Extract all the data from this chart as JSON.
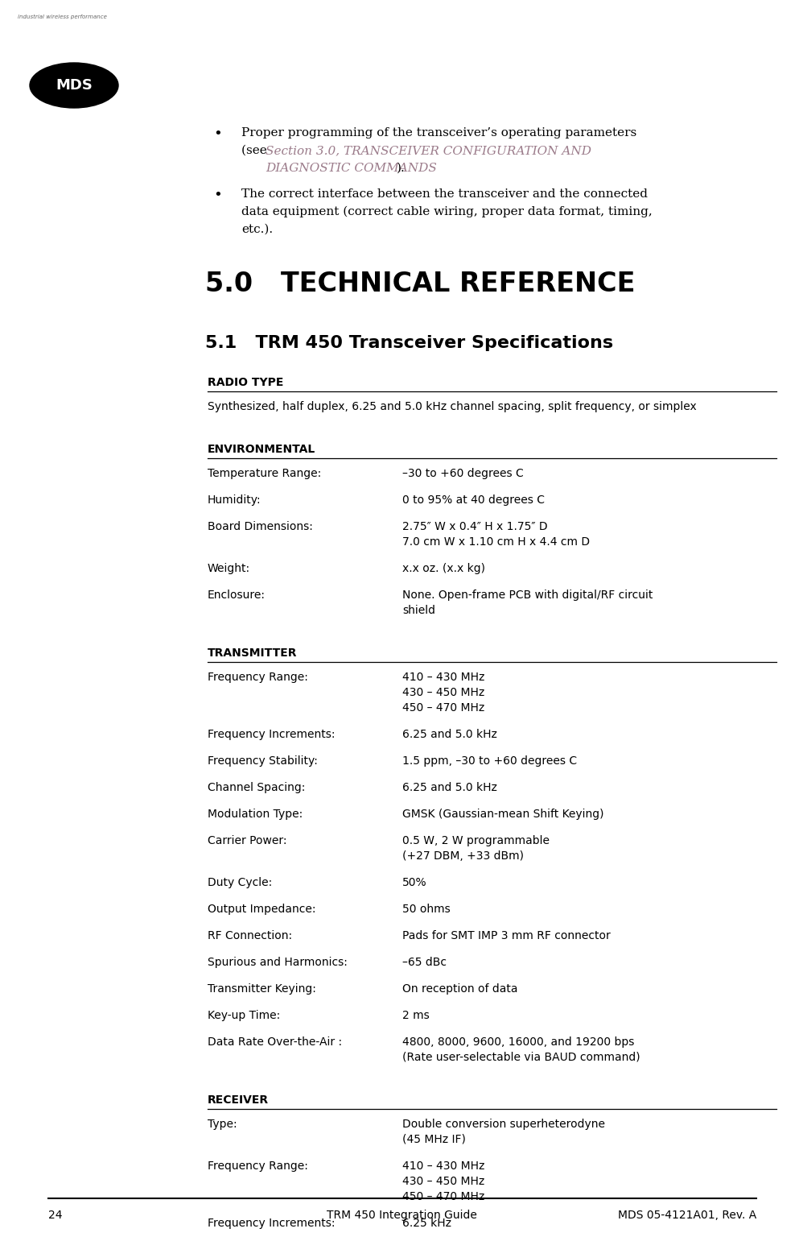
{
  "bg_color": "#ffffff",
  "text_color": "#000000",
  "link_color": "#9b7b8a",
  "page_number": "24",
  "page_title_center": "TRM 450 Integration Guide",
  "page_title_right": "MDS 05-4121A01, Rev. A",
  "sections": [
    {
      "header": "RADIO TYPE",
      "rows": [
        {
          "label": "",
          "value": "Synthesized, half duplex, 6.25 and 5.0 kHz channel spacing, split frequency, or simplex"
        }
      ]
    },
    {
      "header": "ENVIRONMENTAL",
      "rows": [
        {
          "label": "Temperature Range:",
          "value": "–30 to +60 degrees C"
        },
        {
          "label": "Humidity:",
          "value": "0 to 95% at 40 degrees C"
        },
        {
          "label": "Board Dimensions:",
          "value": "2.75″ W x 0.4″ H x 1.75″ D\n7.0 cm W x 1.10 cm H x 4.4 cm D"
        },
        {
          "label": "Weight:",
          "value": "x.x oz. (x.x kg)"
        },
        {
          "label": "Enclosure:",
          "value": "None. Open-frame PCB with digital/RF circuit\nshield"
        }
      ]
    },
    {
      "header": "TRANSMITTER",
      "rows": [
        {
          "label": "Frequency Range:",
          "value": "410 – 430 MHz\n430 – 450 MHz\n450 – 470 MHz"
        },
        {
          "label": "Frequency Increments:",
          "value": "6.25 and 5.0 kHz"
        },
        {
          "label": "Frequency Stability:",
          "value": "1.5 ppm, –30 to +60 degrees C"
        },
        {
          "label": "Channel Spacing:",
          "value": "6.25 and 5.0 kHz"
        },
        {
          "label": "Modulation Type:",
          "value": "GMSK (Gaussian-mean Shift Keying)"
        },
        {
          "label": "Carrier Power:",
          "value": "0.5 W, 2 W programmable\n(+27 DBM, +33 dBm)"
        },
        {
          "label": "Duty Cycle:",
          "value": "50%"
        },
        {
          "label": "Output Impedance:",
          "value": "50 ohms"
        },
        {
          "label": "RF Connection:",
          "value": "Pads for SMT IMP 3 mm RF connector"
        },
        {
          "label": "Spurious and Harmonics:",
          "value": "–65 dBc"
        },
        {
          "label": "Transmitter Keying:",
          "value": "On reception of data"
        },
        {
          "label": "Key-up Time:",
          "value": "2 ms"
        },
        {
          "label": "Data Rate Over-the-Air :",
          "value": "4800, 8000, 9600, 16000, and 19200 bps\n(Rate user-selectable via BAUD command)"
        }
      ]
    },
    {
      "header": "RECEIVER",
      "rows": [
        {
          "label": "Type:",
          "value": "Double conversion superheterodyne\n(45 MHz IF)"
        },
        {
          "label": "Frequency Range:",
          "value": "410 – 430 MHz\n430 – 450 MHz\n450 – 470 MHz"
        },
        {
          "label": "Frequency Increments:",
          "value": "6.25 kHz"
        }
      ]
    }
  ]
}
